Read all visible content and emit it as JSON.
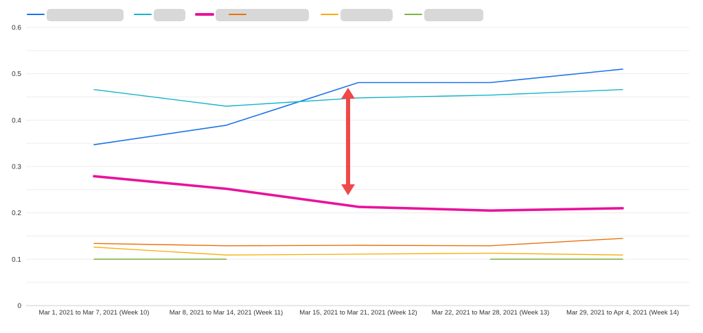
{
  "chart_data": {
    "type": "line",
    "title": "",
    "xlabel": "",
    "ylabel": "",
    "ylim": [
      0,
      0.6
    ],
    "yticks": [
      "0",
      "0.1",
      "0.2",
      "0.3",
      "0.4",
      "0.5",
      "0.6"
    ],
    "categories": [
      "Mar 1, 2021 to Mar 7, 2021 (Week 10)",
      "Mar 8, 2021 to Mar 14, 2021 (Week 11)",
      "Mar 15, 2021 to Mar 21, 2021 (Week 12)",
      "Mar 22, 2021 to Mar 28, 2021 (Week 13)",
      "Mar 29, 2021 to Apr 4, 2021 (Week 14)"
    ],
    "grid": true,
    "legend_position": "top-left",
    "legend_labels_obscured": true,
    "series": [
      {
        "color": "#1a73e8",
        "width": 1.6,
        "values": [
          0.347,
          0.389,
          0.481,
          0.481,
          0.51
        ]
      },
      {
        "color": "#12b5cb",
        "width": 1.4,
        "values": [
          0.466,
          0.43,
          0.448,
          0.454,
          0.466
        ]
      },
      {
        "color": "#e8139b",
        "width": 3.6,
        "values": [
          0.279,
          0.252,
          0.213,
          0.205,
          0.21
        ]
      },
      {
        "color": "#e8710a",
        "width": 1.4,
        "values": [
          0.134,
          0.129,
          0.13,
          0.129,
          0.145
        ]
      },
      {
        "color": "#f9ab00",
        "width": 1.3,
        "values": [
          0.126,
          0.109,
          0.111,
          0.113,
          0.109
        ]
      },
      {
        "color": "#7cb342",
        "width": 1.6,
        "values": [
          0.1,
          0.1,
          null,
          0.1,
          0.1
        ]
      }
    ],
    "annotations": [
      {
        "type": "double-arrow",
        "color": "#f04848",
        "category_index": 2,
        "from": 0.47,
        "to": 0.238
      }
    ]
  }
}
